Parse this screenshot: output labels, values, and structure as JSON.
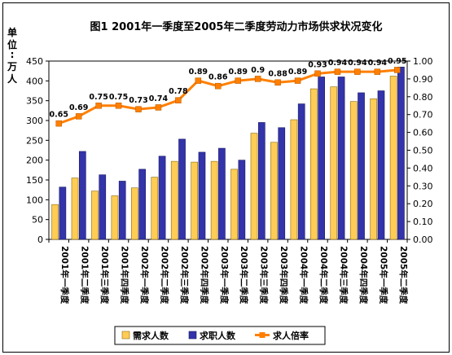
{
  "chart_data": {
    "type": "bar",
    "title": "图1  2001年一季度至2005年二季度劳动力市场供求状况变化",
    "y_unit_label": [
      "单",
      "位",
      ":",
      "万",
      "人"
    ],
    "categories": [
      "2001年一季度",
      "2001年二季度",
      "2001年三季度",
      "2001年四季度",
      "2002年一季度",
      "2002年二季度",
      "2002年三季度",
      "2002年四季度",
      "2003年一季度",
      "2003年二季度",
      "2003年三季度",
      "2003年四季度",
      "2004年一季度",
      "2004年二季度",
      "2004年三季度",
      "2004年四季度",
      "2005年一季度",
      "2005年二季度"
    ],
    "series": [
      {
        "name": "需求人数",
        "type": "bar",
        "axis": "left",
        "color": "#FFCC55",
        "values": [
          88,
          155,
          122,
          110,
          130,
          157,
          197,
          195,
          197,
          177,
          268,
          245,
          302,
          380,
          385,
          348,
          355,
          412
        ]
      },
      {
        "name": "求职人数",
        "type": "bar",
        "axis": "left",
        "color": "#3333AA",
        "values": [
          132,
          222,
          163,
          147,
          177,
          210,
          253,
          220,
          230,
          200,
          295,
          282,
          342,
          410,
          410,
          370,
          375,
          435
        ]
      },
      {
        "name": "求人倍率",
        "type": "line",
        "axis": "right",
        "color": "#FF7F00",
        "values": [
          0.65,
          0.69,
          0.75,
          0.75,
          0.73,
          0.74,
          0.78,
          0.89,
          0.86,
          0.89,
          0.9,
          0.88,
          0.89,
          0.93,
          0.94,
          0.94,
          0.94,
          0.95
        ]
      }
    ],
    "y_left": {
      "min": 0,
      "max": 450,
      "ticks": [
        "0",
        "50",
        "100",
        "150",
        "200",
        "250",
        "300",
        "350",
        "400",
        "450"
      ]
    },
    "y_right": {
      "min": 0,
      "max": 1.0,
      "ticks": [
        "0.00",
        "0.10",
        "0.20",
        "0.30",
        "0.40",
        "0.50",
        "0.60",
        "0.70",
        "0.80",
        "0.90",
        "1.00"
      ]
    },
    "ratio_labels": [
      "0.65",
      "0.69",
      "0.75",
      "0.75",
      "0.73",
      "0.74",
      "0.78",
      "0.89",
      "0.86",
      "0.89",
      "0.9",
      "0.88",
      "0.89",
      "0.93",
      "0.94",
      "0.94",
      "0.94",
      "0.95"
    ],
    "grid": false,
    "legend_position": "bottom"
  }
}
